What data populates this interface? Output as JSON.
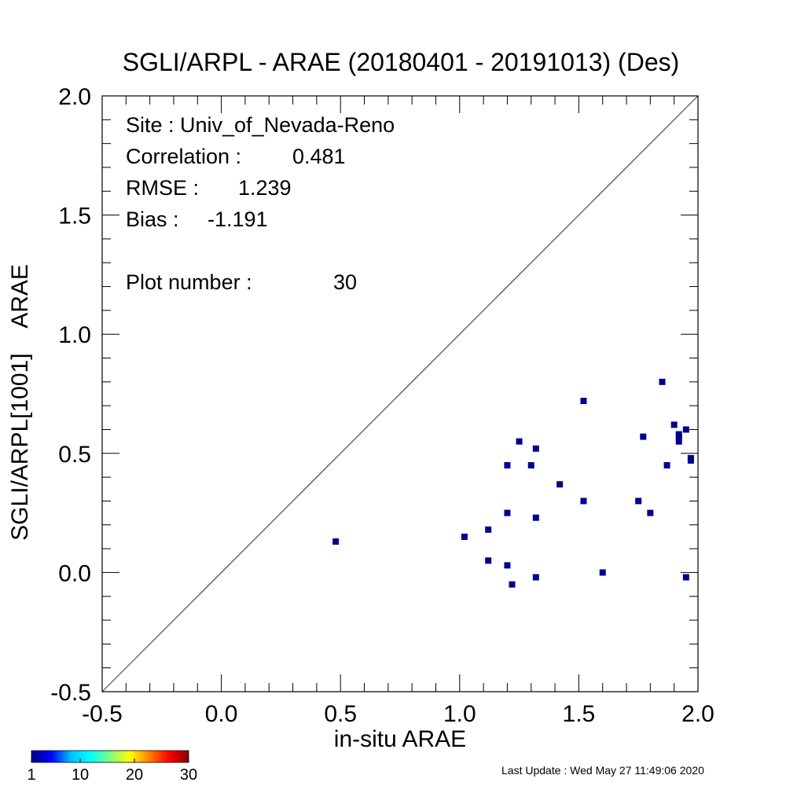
{
  "chart_data": {
    "type": "scatter",
    "title": "SGLI/ARPL - ARAE (20180401 - 20191013) (Des)",
    "xlabel": "in-situ ARAE",
    "ylabel": "SGLI/ARPL[1001]    ARAE",
    "xlim": [
      -0.5,
      2.0
    ],
    "ylim": [
      -0.5,
      2.0
    ],
    "x_ticks": [
      "-0.5",
      "0.0",
      "0.5",
      "1.0",
      "1.5",
      "2.0"
    ],
    "y_ticks": [
      "-0.5",
      "0.0",
      "0.5",
      "1.0",
      "1.5",
      "2.0"
    ],
    "x_tick_values": [
      -0.5,
      0.0,
      0.5,
      1.0,
      1.5,
      2.0
    ],
    "y_tick_values": [
      -0.5,
      0.0,
      0.5,
      1.0,
      1.5,
      2.0
    ],
    "minor_ticks_per_major": 5,
    "reference_line": "1:1",
    "point_color": "#00008b",
    "points": [
      {
        "x": 0.48,
        "y": 0.13
      },
      {
        "x": 1.02,
        "y": 0.15
      },
      {
        "x": 1.12,
        "y": 0.18
      },
      {
        "x": 1.12,
        "y": 0.05
      },
      {
        "x": 1.2,
        "y": 0.45
      },
      {
        "x": 1.2,
        "y": 0.25
      },
      {
        "x": 1.2,
        "y": 0.03
      },
      {
        "x": 1.22,
        "y": -0.05
      },
      {
        "x": 1.25,
        "y": 0.55
      },
      {
        "x": 1.3,
        "y": 0.45
      },
      {
        "x": 1.32,
        "y": 0.52
      },
      {
        "x": 1.32,
        "y": 0.23
      },
      {
        "x": 1.32,
        "y": -0.02
      },
      {
        "x": 1.42,
        "y": 0.37
      },
      {
        "x": 1.52,
        "y": 0.72
      },
      {
        "x": 1.52,
        "y": 0.3
      },
      {
        "x": 1.6,
        "y": 0.0
      },
      {
        "x": 1.75,
        "y": 0.3
      },
      {
        "x": 1.77,
        "y": 0.57
      },
      {
        "x": 1.8,
        "y": 0.25
      },
      {
        "x": 1.85,
        "y": 0.8
      },
      {
        "x": 1.87,
        "y": 0.45
      },
      {
        "x": 1.9,
        "y": 0.62
      },
      {
        "x": 1.92,
        "y": 0.58
      },
      {
        "x": 1.92,
        "y": 0.57
      },
      {
        "x": 1.92,
        "y": 0.55
      },
      {
        "x": 1.95,
        "y": 0.6
      },
      {
        "x": 1.95,
        "y": -0.02
      },
      {
        "x": 1.97,
        "y": 0.47
      },
      {
        "x": 1.97,
        "y": 0.48
      }
    ]
  },
  "stats": {
    "site_label": "Site : Univ_of_Nevada-Reno",
    "correlation_label": "Correlation :",
    "correlation_value": "0.481",
    "rmse_label": "RMSE :",
    "rmse_value": "1.239",
    "bias_label": "Bias :",
    "bias_value": "-1.191",
    "plot_number_label": "Plot number :",
    "plot_number_value": "30"
  },
  "colorbar": {
    "tick_labels": [
      "1",
      "10",
      "20",
      "30"
    ],
    "tick_values": [
      1,
      10,
      20,
      30
    ],
    "range": [
      1,
      30
    ],
    "colors": [
      "#00008b",
      "#0000ff",
      "#00bfff",
      "#00ffff",
      "#7fff7f",
      "#ffff00",
      "#ff7f00",
      "#ff0000",
      "#8b0000"
    ]
  },
  "footer": {
    "last_update": "Last Update : Wed May 27 11:49:06 2020"
  }
}
